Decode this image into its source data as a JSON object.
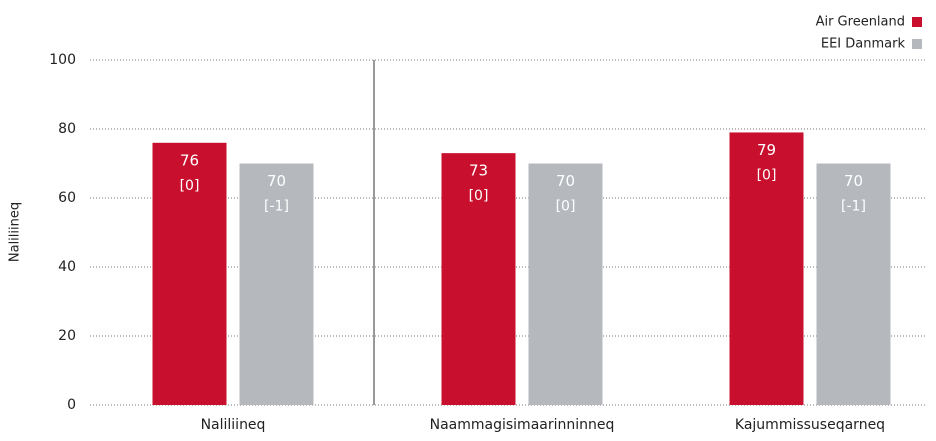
{
  "chart_data": {
    "type": "bar",
    "y_label": "Naliliineq",
    "categories": [
      "Naliliineq",
      "Naammagisimaarinninneq",
      "Kajummissuseqarneq"
    ],
    "series": [
      {
        "name": "Air Greenland",
        "color": "#c8102e",
        "values": [
          76,
          73,
          79
        ],
        "annotations": [
          "[0]",
          "[0]",
          "[0]"
        ]
      },
      {
        "name": "EEI Danmark",
        "color": "#b5b9be",
        "values": [
          70,
          70,
          70
        ],
        "annotations": [
          "[-1]",
          "[0]",
          "[-1]"
        ]
      }
    ],
    "ylim": [
      0,
      100
    ],
    "yticks": [
      0,
      20,
      40,
      60,
      80,
      100
    ],
    "grid": true,
    "legend": "top-right"
  }
}
